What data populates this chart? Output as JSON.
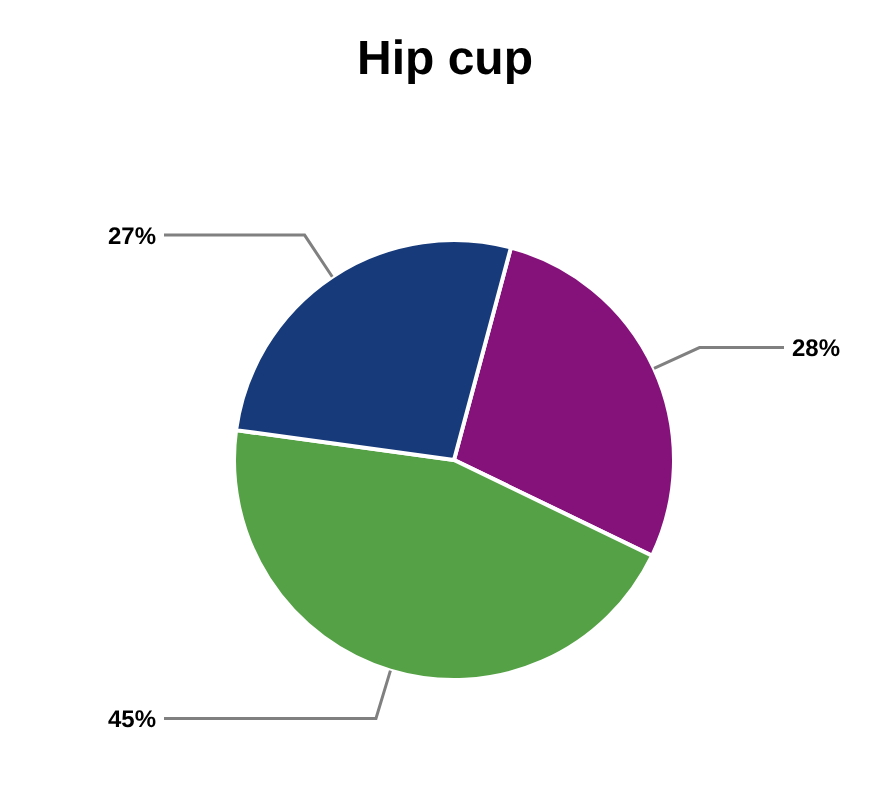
{
  "chart_data": {
    "type": "pie",
    "title": "Hip cup",
    "categories": [
      null,
      null,
      null
    ],
    "values": [
      28,
      45,
      27
    ],
    "colors": [
      "#85117a",
      "#55a146",
      "#173a7b"
    ],
    "value_labels": [
      "28%",
      "45%",
      "27%"
    ],
    "legend": false
  }
}
